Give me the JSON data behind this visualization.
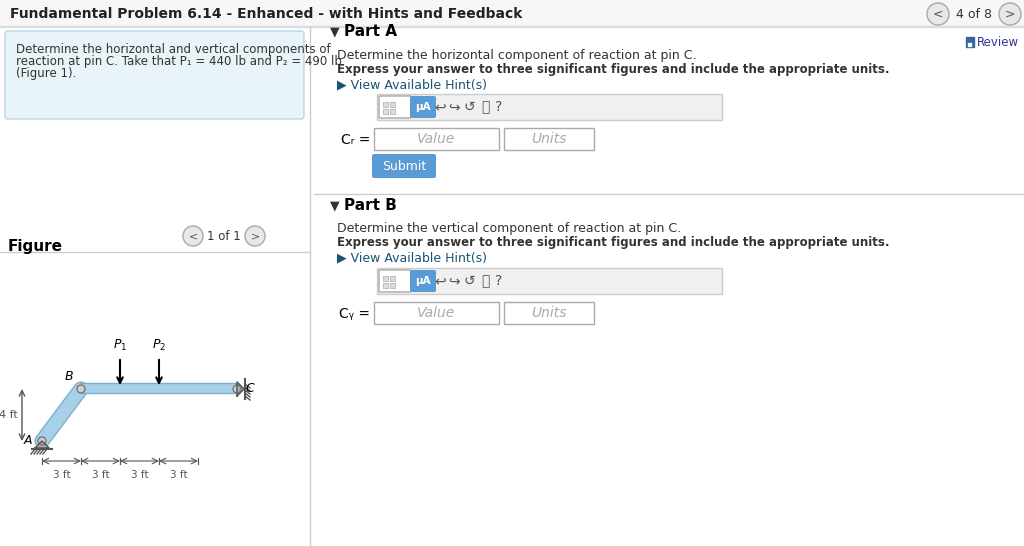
{
  "title": "Fundamental Problem 6.14 - Enhanced - with Hints and Feedback",
  "nav_text": "4 of 8",
  "review_text": "Review",
  "problem_text_line1": "Determine the horizontal and vertical components of",
  "problem_text_line2": "reaction at pin C. Take that P₁ = 440 lb and P₂ = 490 lb",
  "problem_text_line3": "(Figure 1).",
  "figure_label": "Figure",
  "figure_nav": "1 of 1",
  "partA_title": "Part A",
  "partA_desc1": "Determine the horizontal component of reaction at pin C.",
  "partA_desc2": "Express your answer to three significant figures and include the appropriate units.",
  "partA_hint": "▶ View Available Hint(s)",
  "partA_label": "Cᵣ =",
  "partA_value": "Value",
  "partA_units": "Units",
  "submit_text": "Submit",
  "partB_title": "Part B",
  "partB_desc1": "Determine the vertical component of reaction at pin C.",
  "partB_desc2": "Express your answer to three significant figures and include the appropriate units.",
  "partB_hint": "▶ View Available Hint(s)",
  "partB_label": "Cᵧ =",
  "partB_value": "Value",
  "partB_units": "Units",
  "bg_color": "#ffffff",
  "panel_bg": "#e8f4f8",
  "title_color": "#222222",
  "text_color": "#333333",
  "hint_color": "#1a5276",
  "submit_bg": "#5b9bd5",
  "submit_text_color": "#ffffff",
  "toolbar_bg": "#f0f0f0",
  "toolbar_border": "#cccccc",
  "input_bg": "#ffffff",
  "input_border": "#aaaaaa",
  "mua_bg": "#5b9bd5",
  "beam_color": "#a8d0e8",
  "beam_border_color": "#7ab0cc"
}
